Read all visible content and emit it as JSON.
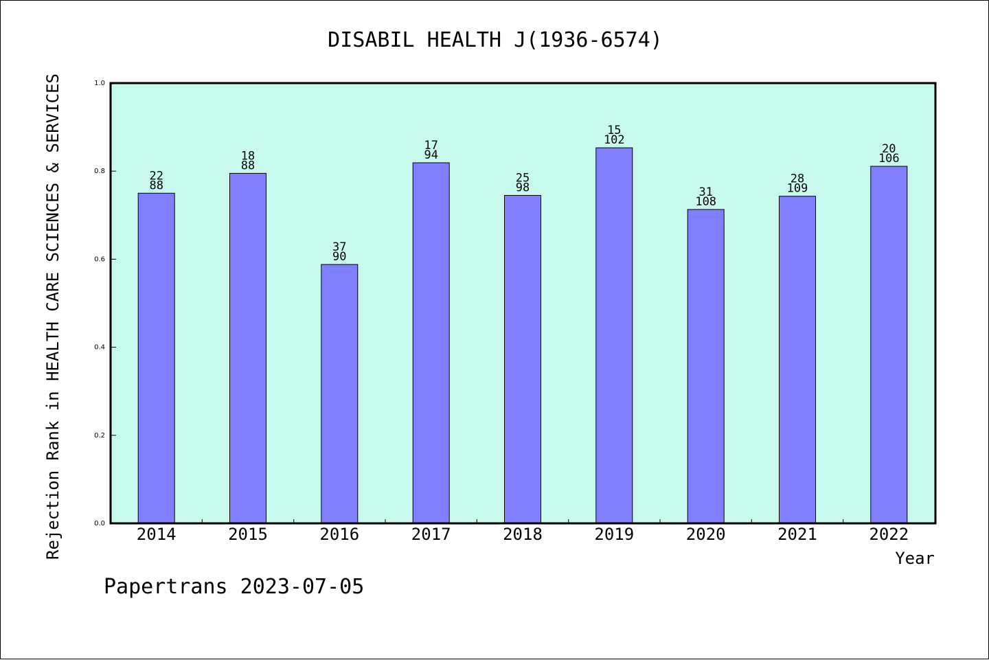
{
  "chart_data": {
    "type": "bar",
    "title": "DISABIL HEALTH J(1936-6574)",
    "xlabel": "Year",
    "ylabel": "Rejection Rank in HEALTH CARE SCIENCES & SERVICES",
    "ylim": [
      0,
      1.0
    ],
    "yticks": [
      "0.0",
      "0.2",
      "0.4",
      "0.6",
      "0.8",
      "1.0"
    ],
    "categories": [
      "2014",
      "2015",
      "2016",
      "2017",
      "2018",
      "2019",
      "2020",
      "2021",
      "2022"
    ],
    "values": [
      0.75,
      0.795,
      0.588,
      0.819,
      0.745,
      0.853,
      0.713,
      0.743,
      0.811
    ],
    "rank_labels": [
      "22",
      "18",
      "37",
      "17",
      "25",
      "15",
      "31",
      "28",
      "20"
    ],
    "total_labels": [
      "88",
      "88",
      "90",
      "94",
      "98",
      "102",
      "108",
      "109",
      "106"
    ],
    "grid": false,
    "colors": {
      "plot_background": "#c8fbee",
      "bar_fill": "#8080ff",
      "bar_stroke": "#000000"
    }
  },
  "footer": {
    "credit": "Papertrans 2023-07-05"
  }
}
